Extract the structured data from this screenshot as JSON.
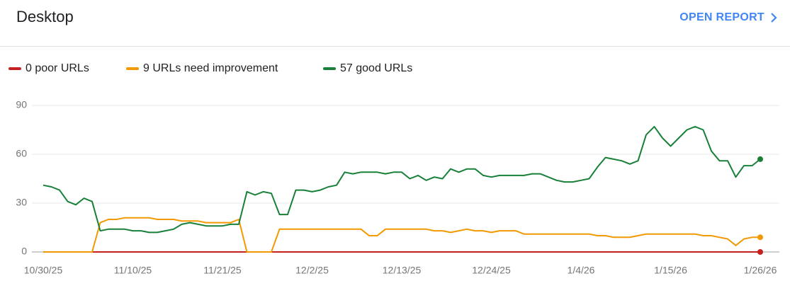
{
  "header": {
    "title": "Desktop",
    "action": "OPEN REPORT"
  },
  "chart_data": {
    "type": "line",
    "categories": [
      "10/30/25",
      null,
      null,
      null,
      null,
      null,
      null,
      null,
      null,
      null,
      null,
      "11/10/25",
      null,
      null,
      null,
      null,
      null,
      null,
      null,
      null,
      null,
      null,
      "11/21/25",
      null,
      null,
      null,
      null,
      null,
      null,
      null,
      null,
      null,
      null,
      "12/2/25",
      null,
      null,
      null,
      null,
      null,
      null,
      null,
      null,
      null,
      null,
      "12/13/25",
      null,
      null,
      null,
      null,
      null,
      null,
      null,
      null,
      null,
      null,
      "12/24/25",
      null,
      null,
      null,
      null,
      null,
      null,
      null,
      null,
      null,
      null,
      "1/4/26",
      null,
      null,
      null,
      null,
      null,
      null,
      null,
      null,
      null,
      null,
      "1/15/26",
      null,
      null,
      null,
      null,
      null,
      null,
      null,
      null,
      null,
      null,
      "1/26/26"
    ],
    "series": [
      {
        "name": "0 poor URLs",
        "color": "#c5221f",
        "values": [
          0,
          0,
          0,
          0,
          0,
          0,
          0,
          0,
          0,
          0,
          0,
          0,
          0,
          0,
          0,
          0,
          0,
          0,
          0,
          0,
          0,
          0,
          0,
          0,
          0,
          0,
          0,
          0,
          0,
          0,
          0,
          0,
          0,
          0,
          0,
          0,
          0,
          0,
          0,
          0,
          0,
          0,
          0,
          0,
          0,
          0,
          0,
          0,
          0,
          0,
          0,
          0,
          0,
          0,
          0,
          0,
          0,
          0,
          0,
          0,
          0,
          0,
          0,
          0,
          0,
          0,
          0,
          0,
          0,
          0,
          0,
          0,
          0,
          0,
          0,
          0,
          0,
          0,
          0,
          0,
          0,
          0,
          0,
          0,
          0,
          0,
          0,
          0,
          0
        ]
      },
      {
        "name": "9 URLs need improvement",
        "color": "#f29900",
        "values": [
          0,
          0,
          0,
          0,
          0,
          0,
          0,
          18,
          20,
          20,
          21,
          21,
          21,
          21,
          20,
          20,
          20,
          19,
          19,
          19,
          18,
          18,
          18,
          18,
          20,
          0,
          0,
          0,
          0,
          14,
          14,
          14,
          14,
          14,
          14,
          14,
          14,
          14,
          14,
          14,
          10,
          10,
          14,
          14,
          14,
          14,
          14,
          14,
          13,
          13,
          12,
          13,
          14,
          13,
          13,
          12,
          13,
          13,
          13,
          11,
          11,
          11,
          11,
          11,
          11,
          11,
          11,
          11,
          10,
          10,
          9,
          9,
          9,
          10,
          11,
          11,
          11,
          11,
          11,
          11,
          11,
          10,
          10,
          9,
          8,
          4,
          8,
          9,
          9
        ]
      },
      {
        "name": "57 good URLs",
        "color": "#188038",
        "values": [
          41,
          40,
          38,
          31,
          29,
          33,
          31,
          13,
          14,
          14,
          14,
          13,
          13,
          12,
          12,
          13,
          14,
          17,
          18,
          17,
          16,
          16,
          16,
          17,
          17,
          37,
          35,
          37,
          36,
          23,
          23,
          38,
          38,
          37,
          38,
          40,
          41,
          49,
          48,
          49,
          49,
          49,
          48,
          49,
          49,
          45,
          47,
          44,
          46,
          45,
          51,
          49,
          51,
          51,
          47,
          46,
          47,
          47,
          47,
          47,
          48,
          48,
          46,
          44,
          43,
          43,
          44,
          45,
          52,
          58,
          57,
          56,
          54,
          56,
          72,
          77,
          70,
          65,
          70,
          75,
          77,
          75,
          62,
          56,
          56,
          46,
          53,
          53,
          57
        ]
      }
    ],
    "ylim": [
      0,
      90
    ],
    "yticks": [
      0,
      30,
      60,
      90
    ],
    "grid": true
  }
}
